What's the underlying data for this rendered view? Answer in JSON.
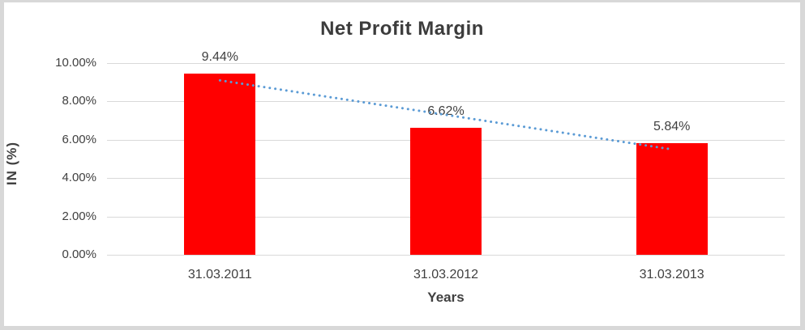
{
  "chart_data": {
    "type": "bar",
    "title": "Net Profit Margin",
    "xlabel": "Years",
    "ylabel": "IN (%)",
    "categories": [
      "31.03.2011",
      "31.03.2012",
      "31.03.2013"
    ],
    "values": [
      9.44,
      6.62,
      5.84
    ],
    "data_labels": [
      "9.44%",
      "6.62%",
      "5.84%"
    ],
    "ylim": [
      0,
      10
    ],
    "ytick_step": 2,
    "ytick_labels": [
      "0.00%",
      "2.00%",
      "4.00%",
      "6.00%",
      "8.00%",
      "10.00%"
    ],
    "grid": true,
    "legend": false,
    "bar_color": "#ff0000",
    "trendline": {
      "type": "linear",
      "fitted_values": [
        9.1,
        7.3,
        5.5
      ],
      "color": "#5b9bd5",
      "style": "dotted"
    },
    "colors": {
      "title_text": "#3c3c3c",
      "axis_text": "#404040",
      "gridline": "#d9d9d9",
      "frame_border": "#d8d8d8",
      "background": "#ffffff"
    }
  }
}
